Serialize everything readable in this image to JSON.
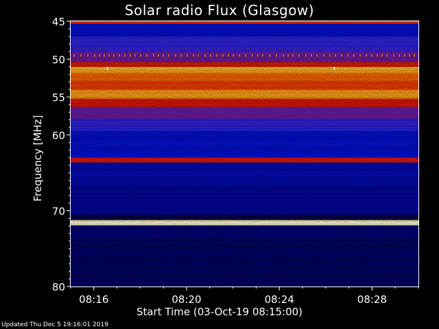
{
  "chart_data": {
    "type": "heatmap",
    "title": "Solar radio Flux (Glasgow)",
    "xlabel": "Start Time (03-Oct-19 08:15:00)",
    "ylabel": "Frequency [MHz]",
    "x_range": [
      "08:15:00",
      "08:30:00"
    ],
    "ylim": [
      45,
      80
    ],
    "y_ticks": [
      45,
      50,
      55,
      60,
      70,
      80
    ],
    "y_tick_labels": [
      "45",
      "50",
      "55",
      "60",
      "70",
      "80"
    ],
    "x_ticks": [
      "08:16",
      "08:20",
      "08:24",
      "08:28"
    ],
    "bands": [
      {
        "from": 45.0,
        "to": 45.3,
        "level": 0.78
      },
      {
        "from": 45.3,
        "to": 47.0,
        "level": 0.22
      },
      {
        "from": 47.0,
        "to": 49.0,
        "level": 0.35
      },
      {
        "from": 49.0,
        "to": 50.3,
        "level": 0.45
      },
      {
        "from": 50.3,
        "to": 51.0,
        "level": 0.7
      },
      {
        "from": 51.0,
        "to": 51.8,
        "level": 0.92
      },
      {
        "from": 51.8,
        "to": 52.8,
        "level": 0.85
      },
      {
        "from": 52.8,
        "to": 54.0,
        "level": 0.8
      },
      {
        "from": 54.0,
        "to": 55.2,
        "level": 0.9
      },
      {
        "from": 55.2,
        "to": 56.3,
        "level": 0.7
      },
      {
        "from": 56.3,
        "to": 57.8,
        "level": 0.45
      },
      {
        "from": 57.8,
        "to": 59.5,
        "level": 0.35
      },
      {
        "from": 59.5,
        "to": 63.0,
        "level": 0.22
      },
      {
        "from": 63.0,
        "to": 63.6,
        "level": 0.72
      },
      {
        "from": 63.6,
        "to": 67.0,
        "level": 0.18
      },
      {
        "from": 67.0,
        "to": 70.5,
        "level": 0.15
      },
      {
        "from": 70.5,
        "to": 71.2,
        "level": 0.05
      },
      {
        "from": 71.2,
        "to": 71.9,
        "level": 1.0
      },
      {
        "from": 71.9,
        "to": 74.0,
        "level": 0.1
      },
      {
        "from": 74.0,
        "to": 80.0,
        "level": 0.08
      }
    ]
  },
  "footer": {
    "updated": "Updated Thu Dec  5 19:16:01 2019"
  }
}
